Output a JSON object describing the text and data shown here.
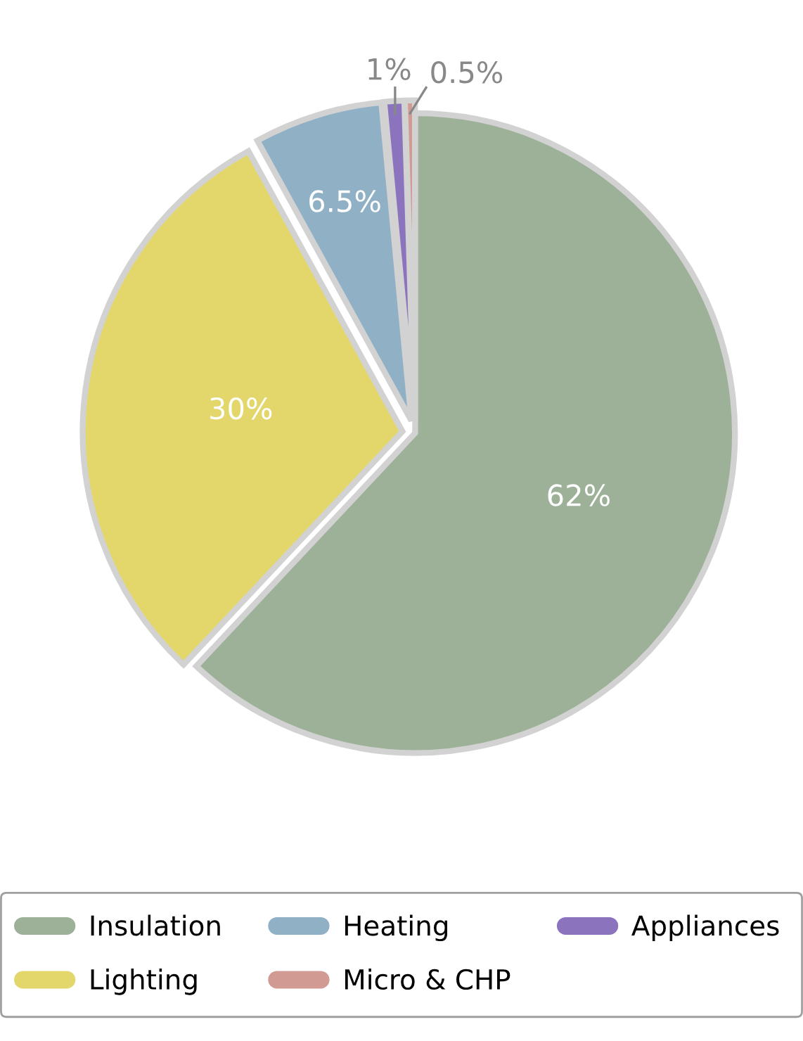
{
  "chart_data": {
    "type": "pie",
    "categories": [
      "Insulation",
      "Lighting",
      "Heating",
      "Appliances",
      "Micro & CHP"
    ],
    "values": [
      62,
      30,
      6.5,
      1,
      0.5
    ],
    "colors": [
      "#9db199",
      "#e3d66b",
      "#90b1c5",
      "#8b73be",
      "#d19a93"
    ],
    "value_labels": [
      "62%",
      "30%",
      "6.5%",
      "1%",
      "0.5%"
    ],
    "legend": "bottom"
  }
}
